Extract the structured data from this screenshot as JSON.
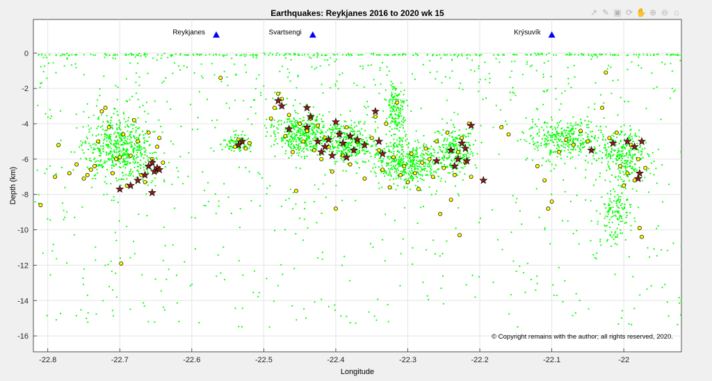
{
  "chart_data": {
    "type": "scatter",
    "title": "Earthquakes: Reykjanes 2016 to 2020 wk 15",
    "xlabel": "Longitude",
    "ylabel": "Depth (km)",
    "xlim": [
      -22.82,
      -21.92
    ],
    "ylim": [
      -16.9,
      1.9
    ],
    "x_ticks": [
      -22.8,
      -22.7,
      -22.6,
      -22.5,
      -22.4,
      -22.3,
      -22.2,
      -22.1,
      -22.0
    ],
    "y_ticks": [
      0,
      -2,
      -4,
      -6,
      -8,
      -10,
      -12,
      -14,
      -16
    ],
    "grid": true,
    "legend": "none",
    "copyright": "© Copyright remains with the author; all rights reserved, 2020.",
    "colors": {
      "small": "#00ff00",
      "medium": "#ffff00",
      "large": "#8b1a1a",
      "station": "#0000ff"
    },
    "stations": [
      {
        "name": "Reykjanes",
        "lon": -22.566,
        "depth": 1.05
      },
      {
        "name": "Svartsengi",
        "lon": -22.432,
        "depth": 1.05
      },
      {
        "name": "Krýsuvík",
        "lon": -22.1,
        "depth": 1.05
      }
    ],
    "clusters": [
      {
        "lon": -22.7,
        "depth": -5.4,
        "sx": 0.035,
        "sy": 1.15,
        "weight": 0.17
      },
      {
        "lon": -22.535,
        "depth": -5.1,
        "sx": 0.013,
        "sy": 0.35,
        "weight": 0.03
      },
      {
        "lon": -22.445,
        "depth": -4.6,
        "sx": 0.028,
        "sy": 0.9,
        "weight": 0.12
      },
      {
        "lon": -22.38,
        "depth": -5.1,
        "sx": 0.022,
        "sy": 0.8,
        "weight": 0.09
      },
      {
        "lon": -22.315,
        "depth": -3.2,
        "sx": 0.01,
        "sy": 1.1,
        "weight": 0.05
      },
      {
        "lon": -22.3,
        "depth": -6.2,
        "sx": 0.03,
        "sy": 0.9,
        "weight": 0.14
      },
      {
        "lon": -22.235,
        "depth": -5.5,
        "sx": 0.018,
        "sy": 0.9,
        "weight": 0.07
      },
      {
        "lon": -22.08,
        "depth": -4.8,
        "sx": 0.035,
        "sy": 0.8,
        "weight": 0.1
      },
      {
        "lon": -22.0,
        "depth": -5.8,
        "sx": 0.025,
        "sy": 1.2,
        "weight": 0.09
      },
      {
        "lon": -22.01,
        "depth": -9.2,
        "sx": 0.015,
        "sy": 1.0,
        "weight": 0.04
      }
    ],
    "surface_band": {
      "depth": -0.1,
      "count": 230
    },
    "medium_events": [
      [
        -22.81,
        -8.6
      ],
      [
        -22.79,
        -7.0
      ],
      [
        -22.785,
        -5.2
      ],
      [
        -22.77,
        -6.8
      ],
      [
        -22.76,
        -6.3
      ],
      [
        -22.75,
        -7.1
      ],
      [
        -22.745,
        -6.9
      ],
      [
        -22.74,
        -6.6
      ],
      [
        -22.735,
        -6.4
      ],
      [
        -22.73,
        -5.0
      ],
      [
        -22.725,
        -3.3
      ],
      [
        -22.72,
        -3.1
      ],
      [
        -22.715,
        -4.2
      ],
      [
        -22.71,
        -6.8
      ],
      [
        -22.705,
        -6.0
      ],
      [
        -22.7,
        -5.9
      ],
      [
        -22.695,
        -4.6
      ],
      [
        -22.69,
        -7.5
      ],
      [
        -22.685,
        -5.8
      ],
      [
        -22.68,
        -3.8
      ],
      [
        -22.675,
        -5.0
      ],
      [
        -22.67,
        -6.9
      ],
      [
        -22.665,
        -7.3
      ],
      [
        -22.66,
        -4.5
      ],
      [
        -22.655,
        -6.0
      ],
      [
        -22.65,
        -6.7
      ],
      [
        -22.648,
        -5.3
      ],
      [
        -22.645,
        -4.8
      ],
      [
        -22.64,
        -6.2
      ],
      [
        -22.698,
        -11.9
      ],
      [
        -22.56,
        -1.4
      ],
      [
        -22.54,
        -5.3
      ],
      [
        -22.535,
        -4.9
      ],
      [
        -22.525,
        -5.4
      ],
      [
        -22.52,
        -5.1
      ],
      [
        -22.49,
        -3.7
      ],
      [
        -22.485,
        -3.1
      ],
      [
        -22.48,
        -2.3
      ],
      [
        -22.475,
        -2.6
      ],
      [
        -22.47,
        -4.7
      ],
      [
        -22.465,
        -3.5
      ],
      [
        -22.46,
        -5.6
      ],
      [
        -22.455,
        -7.8
      ],
      [
        -22.45,
        -4.0
      ],
      [
        -22.445,
        -5.0
      ],
      [
        -22.44,
        -4.4
      ],
      [
        -22.435,
        -3.7
      ],
      [
        -22.43,
        -5.5
      ],
      [
        -22.425,
        -4.1
      ],
      [
        -22.42,
        -6.0
      ],
      [
        -22.415,
        -4.8
      ],
      [
        -22.41,
        -5.3
      ],
      [
        -22.405,
        -6.7
      ],
      [
        -22.4,
        -8.8
      ],
      [
        -22.395,
        -4.5
      ],
      [
        -22.39,
        -5.8
      ],
      [
        -22.385,
        -4.2
      ],
      [
        -22.38,
        -6.3
      ],
      [
        -22.37,
        -5.0
      ],
      [
        -22.36,
        -7.1
      ],
      [
        -22.35,
        -4.8
      ],
      [
        -22.345,
        -3.6
      ],
      [
        -22.34,
        -5.5
      ],
      [
        -22.335,
        -6.6
      ],
      [
        -22.33,
        -4.0
      ],
      [
        -22.325,
        -7.6
      ],
      [
        -22.32,
        -5.9
      ],
      [
        -22.315,
        -2.8
      ],
      [
        -22.31,
        -6.9
      ],
      [
        -22.305,
        -6.4
      ],
      [
        -22.3,
        -7.3
      ],
      [
        -22.295,
        -5.7
      ],
      [
        -22.29,
        -6.8
      ],
      [
        -22.285,
        -7.7
      ],
      [
        -22.28,
        -6.2
      ],
      [
        -22.275,
        -5.4
      ],
      [
        -22.27,
        -6.0
      ],
      [
        -22.265,
        -7.0
      ],
      [
        -22.26,
        -5.0
      ],
      [
        -22.255,
        -9.1
      ],
      [
        -22.25,
        -6.5
      ],
      [
        -22.245,
        -4.5
      ],
      [
        -22.24,
        -8.3
      ],
      [
        -22.235,
        -6.9
      ],
      [
        -22.23,
        -5.6
      ],
      [
        -22.228,
        -10.3
      ],
      [
        -22.225,
        -4.8
      ],
      [
        -22.22,
        -6.2
      ],
      [
        -22.215,
        -4.0
      ],
      [
        -22.212,
        -7.0
      ],
      [
        -22.17,
        -4.2
      ],
      [
        -22.16,
        -4.6
      ],
      [
        -22.12,
        -6.4
      ],
      [
        -22.11,
        -7.2
      ],
      [
        -22.105,
        -8.8
      ],
      [
        -22.1,
        -8.4
      ],
      [
        -22.09,
        -5.6
      ],
      [
        -22.08,
        -4.9
      ],
      [
        -22.07,
        -5.2
      ],
      [
        -22.06,
        -4.4
      ],
      [
        -22.05,
        -5.0
      ],
      [
        -22.045,
        -5.5
      ],
      [
        -22.03,
        -3.1
      ],
      [
        -22.025,
        -1.1
      ],
      [
        -22.02,
        -4.8
      ],
      [
        -22.01,
        -4.5
      ],
      [
        -22.005,
        -6.4
      ],
      [
        -22.0,
        -7.5
      ],
      [
        -21.995,
        -6.8
      ],
      [
        -21.99,
        -5.2
      ],
      [
        -21.985,
        -7.2
      ],
      [
        -21.98,
        -6.0
      ],
      [
        -21.978,
        -9.9
      ],
      [
        -21.975,
        -10.4
      ],
      [
        -21.97,
        -6.5
      ]
    ],
    "large_events": [
      [
        -22.7,
        -7.7
      ],
      [
        -22.685,
        -7.5
      ],
      [
        -22.675,
        -7.2
      ],
      [
        -22.665,
        -6.9
      ],
      [
        -22.66,
        -6.4
      ],
      [
        -22.655,
        -6.2
      ],
      [
        -22.652,
        -6.7
      ],
      [
        -22.648,
        -6.5
      ],
      [
        -22.645,
        -6.6
      ],
      [
        -22.655,
        -7.9
      ],
      [
        -22.535,
        -5.2
      ],
      [
        -22.53,
        -5.0
      ],
      [
        -22.48,
        -2.7
      ],
      [
        -22.475,
        -3.0
      ],
      [
        -22.465,
        -4.3
      ],
      [
        -22.44,
        -3.1
      ],
      [
        -22.435,
        -3.6
      ],
      [
        -22.44,
        -4.2
      ],
      [
        -22.425,
        -5.0
      ],
      [
        -22.42,
        -5.6
      ],
      [
        -22.415,
        -5.3
      ],
      [
        -22.41,
        -4.9
      ],
      [
        -22.405,
        -5.8
      ],
      [
        -22.4,
        -3.9
      ],
      [
        -22.395,
        -4.6
      ],
      [
        -22.39,
        -5.1
      ],
      [
        -22.385,
        -5.9
      ],
      [
        -22.38,
        -4.7
      ],
      [
        -22.375,
        -5.5
      ],
      [
        -22.37,
        -4.9
      ],
      [
        -22.36,
        -5.2
      ],
      [
        -22.345,
        -3.3
      ],
      [
        -22.34,
        -5.0
      ],
      [
        -22.335,
        -5.7
      ],
      [
        -22.26,
        -6.1
      ],
      [
        -22.24,
        -5.5
      ],
      [
        -22.235,
        -6.4
      ],
      [
        -22.23,
        -6.0
      ],
      [
        -22.225,
        -5.1
      ],
      [
        -22.22,
        -5.4
      ],
      [
        -22.218,
        -6.1
      ],
      [
        -22.212,
        -4.1
      ],
      [
        -22.195,
        -7.2
      ],
      [
        -22.045,
        -5.5
      ],
      [
        -22.015,
        -5.1
      ],
      [
        -21.995,
        -5.0
      ],
      [
        -21.985,
        -5.3
      ],
      [
        -21.98,
        -7.1
      ],
      [
        -21.978,
        -6.8
      ],
      [
        -21.975,
        -5.0
      ]
    ]
  }
}
